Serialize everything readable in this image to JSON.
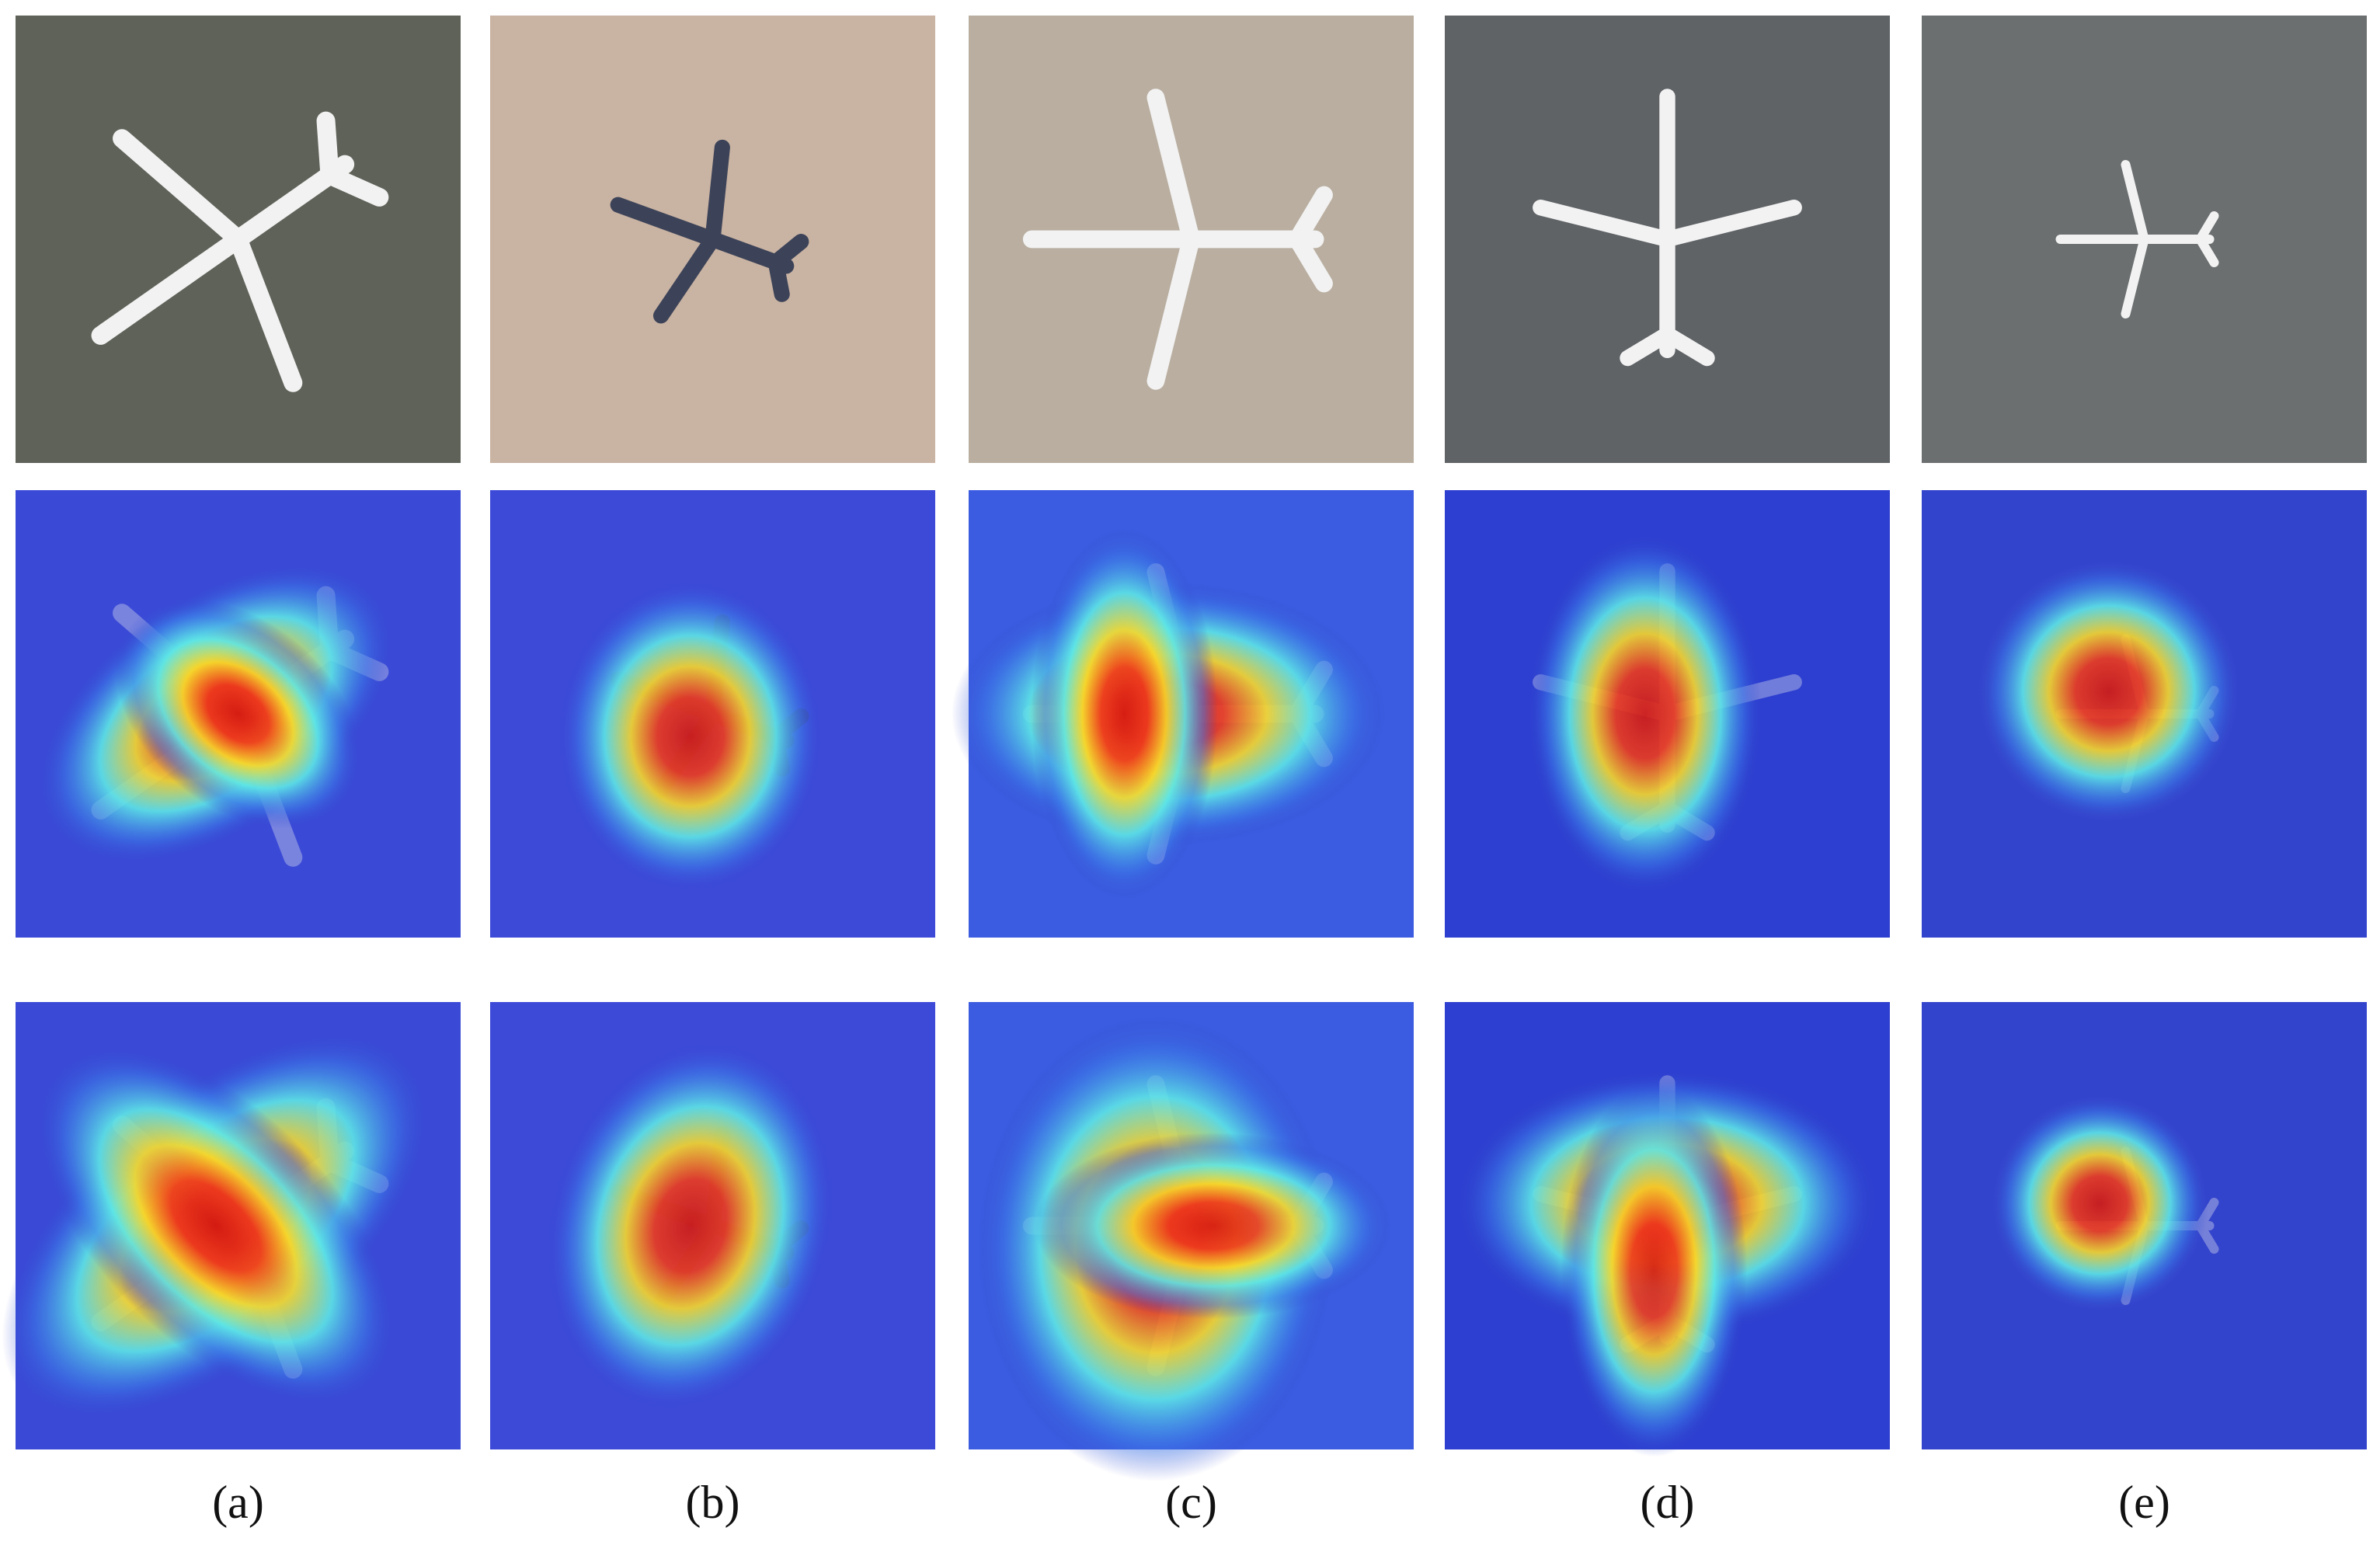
{
  "captions": [
    "(a)",
    "(b)",
    "(c)",
    "(d)",
    "(e)"
  ]
}
